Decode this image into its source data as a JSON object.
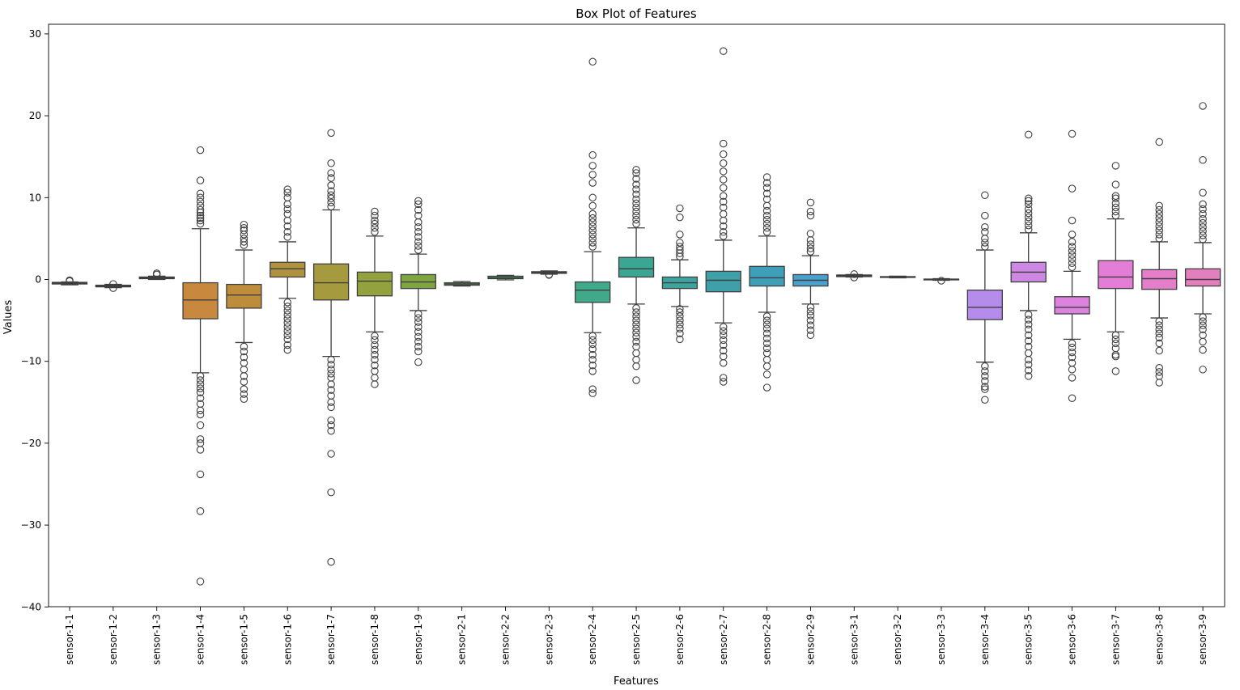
{
  "chart_data": {
    "type": "box",
    "title": "Box Plot of Features",
    "xlabel": "Features",
    "ylabel": "Values",
    "ylim": [
      -40.2,
      31.0
    ],
    "yticks": [
      30,
      20,
      10,
      0,
      -10,
      -20,
      -30,
      -40
    ],
    "ytick_labels": [
      "30",
      "20",
      "10",
      "0",
      "−10",
      "−20",
      "−30",
      "−40"
    ],
    "grid": false,
    "legend": "none",
    "categories": [
      "sensor-1-1",
      "sensor-1-2",
      "sensor-1-3",
      "sensor-1-4",
      "sensor-1-5",
      "sensor-1-6",
      "sensor-1-7",
      "sensor-1-8",
      "sensor-1-9",
      "sensor-2-1",
      "sensor-2-2",
      "sensor-2-3",
      "sensor-2-4",
      "sensor-2-5",
      "sensor-2-6",
      "sensor-2-7",
      "sensor-2-8",
      "sensor-2-9",
      "sensor-3-1",
      "sensor-3-2",
      "sensor-3-3",
      "sensor-3-4",
      "sensor-3-5",
      "sensor-3-6",
      "sensor-3-7",
      "sensor-3-8",
      "sensor-3-9"
    ],
    "boxes": [
      {
        "color": "#e1806f",
        "q1": -0.55,
        "median": -0.45,
        "q3": -0.35,
        "whislo": -0.65,
        "whishi": -0.3,
        "fliers": [
          -0.2,
          -0.1
        ]
      },
      {
        "color": "#d98a55",
        "q1": -0.9,
        "median": -0.8,
        "q3": -0.7,
        "whislo": -1.0,
        "whishi": -0.6,
        "fliers": [
          -0.55,
          -1.05
        ]
      },
      {
        "color": "#d0925a",
        "q1": 0.1,
        "median": 0.2,
        "q3": 0.3,
        "whislo": 0.0,
        "whishi": 0.4,
        "fliers": [
          0.6,
          0.75
        ]
      },
      {
        "color": "#c8883e",
        "q1": -4.8,
        "median": -2.5,
        "q3": -0.4,
        "whislo": -11.4,
        "whishi": 6.2,
        "fliers": [
          6.8,
          7.2,
          7.5,
          7.8,
          8.2,
          8.5,
          9.0,
          9.5,
          10.0,
          10.5,
          12.1,
          15.8,
          -11.8,
          -12.3,
          -12.8,
          -13.3,
          -13.8,
          -14.5,
          -15.2,
          -16.0,
          -16.5,
          -17.8,
          -19.5,
          -20.0,
          -20.8,
          -23.8,
          -28.3,
          -36.9
        ]
      },
      {
        "color": "#bd8d3b",
        "q1": -3.5,
        "median": -1.9,
        "q3": -0.6,
        "whislo": -7.7,
        "whishi": 3.6,
        "fliers": [
          4.2,
          4.6,
          5.0,
          5.5,
          6.0,
          6.3,
          6.7,
          -8.2,
          -8.8,
          -9.5,
          -10.2,
          -11.0,
          -11.8,
          -12.5,
          -13.4,
          -14.0,
          -14.6
        ]
      },
      {
        "color": "#b09340",
        "q1": 0.3,
        "median": 1.3,
        "q3": 2.1,
        "whislo": -2.3,
        "whishi": 4.6,
        "fliers": [
          5.2,
          5.8,
          6.5,
          7.2,
          8.0,
          8.6,
          9.2,
          10.0,
          10.6,
          11.0,
          -2.8,
          -3.3,
          -3.8,
          -4.3,
          -4.8,
          -5.3,
          -5.8,
          -6.3,
          -6.8,
          -7.3,
          -8.0,
          -8.6
        ]
      },
      {
        "color": "#a59a3d",
        "q1": -2.5,
        "median": -0.4,
        "q3": 1.9,
        "whislo": -9.4,
        "whishi": 8.5,
        "fliers": [
          8.9,
          9.4,
          9.9,
          10.3,
          10.8,
          11.5,
          12.4,
          13.0,
          14.2,
          17.9,
          -9.8,
          -10.4,
          -11.0,
          -11.5,
          -12.0,
          -12.8,
          -13.5,
          -14.2,
          -15.0,
          -15.6,
          -17.2,
          -17.8,
          -18.5,
          -21.3,
          -26.0,
          -34.5
        ]
      },
      {
        "color": "#93a23f",
        "q1": -2.0,
        "median": -0.2,
        "q3": 0.9,
        "whislo": -6.4,
        "whishi": 5.3,
        "fliers": [
          5.8,
          6.3,
          6.8,
          7.2,
          7.8,
          8.3,
          -6.9,
          -7.4,
          -8.0,
          -8.6,
          -9.2,
          -9.8,
          -10.5,
          -11.2,
          -12.0,
          -12.8
        ]
      },
      {
        "color": "#7fa542",
        "q1": -1.1,
        "median": -0.3,
        "q3": 0.6,
        "whislo": -3.8,
        "whishi": 3.1,
        "fliers": [
          3.6,
          4.1,
          4.6,
          5.2,
          5.8,
          6.4,
          7.0,
          7.8,
          8.5,
          9.2,
          9.6,
          -4.2,
          -4.7,
          -5.2,
          -5.8,
          -6.4,
          -7.0,
          -7.6,
          -8.2,
          -8.8,
          -10.1
        ]
      },
      {
        "color": "#5ba94c",
        "q1": -0.7,
        "median": -0.55,
        "q3": -0.4,
        "whislo": -0.8,
        "whishi": -0.25,
        "fliers": []
      },
      {
        "color": "#47aa6e",
        "q1": 0.1,
        "median": 0.2,
        "q3": 0.4,
        "whislo": -0.05,
        "whishi": 0.5,
        "fliers": []
      },
      {
        "color": "#48aa82",
        "q1": 0.75,
        "median": 0.85,
        "q3": 0.95,
        "whislo": 0.65,
        "whishi": 1.05,
        "fliers": [
          0.55,
          0.6
        ]
      },
      {
        "color": "#3fa98a",
        "q1": -2.8,
        "median": -1.3,
        "q3": -0.3,
        "whislo": -6.5,
        "whishi": 3.4,
        "fliers": [
          4.0,
          4.5,
          5.0,
          5.5,
          6.0,
          6.5,
          7.0,
          7.5,
          8.0,
          9.0,
          10.0,
          11.8,
          12.8,
          13.9,
          15.2,
          26.6,
          -6.9,
          -7.4,
          -7.9,
          -8.5,
          -9.2,
          -9.8,
          -10.5,
          -11.2,
          -13.4,
          -13.9
        ]
      },
      {
        "color": "#3ba693",
        "q1": 0.3,
        "median": 1.3,
        "q3": 2.7,
        "whislo": -3.0,
        "whishi": 6.3,
        "fliers": [
          6.8,
          7.3,
          7.8,
          8.3,
          8.8,
          9.3,
          9.8,
          10.4,
          11.0,
          11.6,
          12.3,
          13.0,
          13.4,
          -3.5,
          -4.0,
          -4.5,
          -5.0,
          -5.5,
          -6.0,
          -6.5,
          -7.0,
          -7.6,
          -8.2,
          -9.0,
          -9.8,
          -10.6,
          -12.3
        ]
      },
      {
        "color": "#3ca39e",
        "q1": -1.1,
        "median": -0.4,
        "q3": 0.3,
        "whislo": -3.3,
        "whishi": 2.4,
        "fliers": [
          2.8,
          3.2,
          3.6,
          4.0,
          4.5,
          5.5,
          7.6,
          8.7,
          -3.6,
          -4.0,
          -4.5,
          -5.0,
          -5.5,
          -6.0,
          -6.6,
          -7.3
        ]
      },
      {
        "color": "#3fa0aa",
        "q1": -1.5,
        "median": -0.1,
        "q3": 1.0,
        "whislo": -5.3,
        "whishi": 4.8,
        "fliers": [
          5.3,
          5.8,
          6.5,
          7.2,
          8.0,
          8.8,
          9.5,
          10.2,
          11.2,
          12.2,
          13.2,
          14.2,
          15.3,
          16.6,
          27.9,
          -5.8,
          -6.3,
          -6.8,
          -7.4,
          -8.0,
          -8.7,
          -9.4,
          -10.2,
          -12.0,
          -12.5
        ]
      },
      {
        "color": "#3e9fb9",
        "q1": -0.8,
        "median": 0.2,
        "q3": 1.6,
        "whislo": -4.0,
        "whishi": 5.3,
        "fliers": [
          5.8,
          6.3,
          6.8,
          7.3,
          7.8,
          8.4,
          9.0,
          9.8,
          10.5,
          11.2,
          11.8,
          12.5,
          -4.5,
          -5.0,
          -5.5,
          -6.0,
          -6.6,
          -7.2,
          -7.8,
          -8.4,
          -9.0,
          -9.8,
          -10.6,
          -11.6,
          -13.2
        ]
      },
      {
        "color": "#48a0cc",
        "q1": -0.8,
        "median": -0.1,
        "q3": 0.6,
        "whislo": -3.0,
        "whishi": 2.9,
        "fliers": [
          3.4,
          3.8,
          4.3,
          4.8,
          5.6,
          7.8,
          8.3,
          9.4,
          -3.4,
          -3.9,
          -4.4,
          -5.0,
          -5.6,
          -6.2,
          -6.8
        ]
      },
      {
        "color": "#7a9fe2",
        "q1": 0.35,
        "median": 0.45,
        "q3": 0.55,
        "whislo": 0.3,
        "whishi": 0.6,
        "fliers": [
          0.25,
          0.65
        ]
      },
      {
        "color": "#8e9ae9",
        "q1": 0.25,
        "median": 0.3,
        "q3": 0.35,
        "whislo": 0.2,
        "whishi": 0.4,
        "fliers": []
      },
      {
        "color": "#9f95ec",
        "q1": -0.05,
        "median": 0.0,
        "q3": 0.05,
        "whislo": -0.1,
        "whishi": 0.1,
        "fliers": [
          -0.15
        ]
      },
      {
        "color": "#b58ceb",
        "q1": -4.9,
        "median": -3.4,
        "q3": -1.3,
        "whislo": -10.1,
        "whishi": 3.6,
        "fliers": [
          4.0,
          4.5,
          5.0,
          5.8,
          6.4,
          7.8,
          10.3,
          -10.6,
          -11.2,
          -11.8,
          -12.4,
          -13.1,
          -13.4,
          -14.7
        ]
      },
      {
        "color": "#cd88e3",
        "q1": -0.3,
        "median": 0.9,
        "q3": 2.1,
        "whislo": -3.8,
        "whishi": 5.7,
        "fliers": [
          6.1,
          6.6,
          7.1,
          7.6,
          8.1,
          8.6,
          9.2,
          9.6,
          9.9,
          17.7,
          -4.3,
          -4.9,
          -5.5,
          -6.1,
          -6.8,
          -7.5,
          -8.2,
          -9.0,
          -9.8,
          -10.4,
          -11.1,
          -11.8
        ]
      },
      {
        "color": "#dc82df",
        "q1": -4.2,
        "median": -3.4,
        "q3": -2.1,
        "whislo": -7.3,
        "whishi": 1.0,
        "fliers": [
          1.5,
          2.0,
          2.5,
          3.0,
          3.5,
          4.0,
          4.6,
          5.5,
          7.2,
          11.1,
          17.8,
          -7.8,
          -8.3,
          -8.9,
          -9.5,
          -10.2,
          -11.0,
          -12.0,
          -14.5
        ]
      },
      {
        "color": "#e37dd6",
        "q1": -1.1,
        "median": 0.3,
        "q3": 2.3,
        "whislo": -6.4,
        "whishi": 7.4,
        "fliers": [
          7.8,
          8.3,
          8.8,
          9.3,
          9.9,
          10.2,
          11.6,
          13.9,
          -6.8,
          -7.3,
          -7.8,
          -8.4,
          -9.2,
          -9.4,
          -11.2
        ]
      },
      {
        "color": "#e57eca",
        "q1": -1.2,
        "median": 0.1,
        "q3": 1.2,
        "whislo": -4.7,
        "whishi": 4.6,
        "fliers": [
          5.0,
          5.5,
          6.0,
          6.5,
          7.0,
          7.5,
          8.0,
          8.5,
          9.0,
          16.8,
          -5.1,
          -5.6,
          -6.1,
          -6.6,
          -7.1,
          -7.8,
          -8.7,
          -10.8,
          -11.3,
          -11.8,
          -12.6
        ]
      },
      {
        "color": "#e37fbd",
        "q1": -0.8,
        "median": 0.0,
        "q3": 1.3,
        "whislo": -4.2,
        "whishi": 4.5,
        "fliers": [
          4.9,
          5.4,
          5.9,
          6.4,
          6.9,
          7.4,
          8.0,
          8.6,
          9.2,
          10.6,
          14.6,
          21.2,
          -4.6,
          -5.1,
          -5.6,
          -6.1,
          -6.8,
          -7.6,
          -8.6,
          -11.0
        ]
      }
    ]
  }
}
